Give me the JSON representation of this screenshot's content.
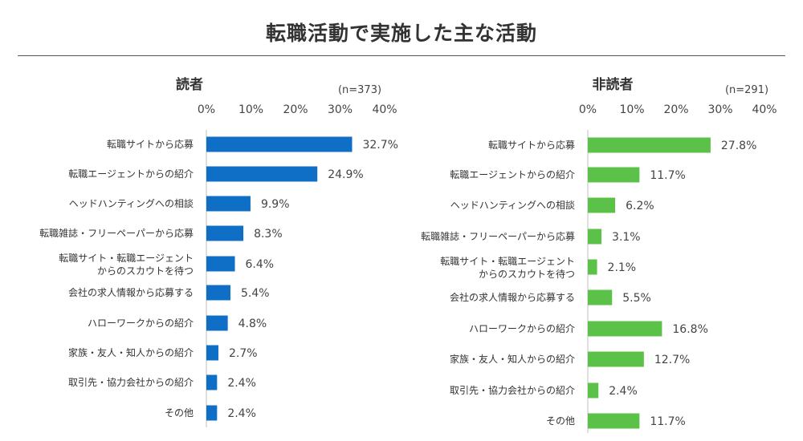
{
  "title": "転職活動で実施した主な活動",
  "chart_data": [
    {
      "type": "bar",
      "orientation": "horizontal",
      "title": "読者",
      "n_label": "(n=373)",
      "x_ticks": [
        "0%",
        "10%",
        "20%",
        "30%",
        "40%"
      ],
      "xlim": [
        0,
        40
      ],
      "unit": "%",
      "color": "#0f6fc6",
      "categories": [
        [
          "転職サイトから応募"
        ],
        [
          "転職エージェントからの紹介"
        ],
        [
          "ヘッドハンティングへの相談"
        ],
        [
          "転職雑誌・フリーペーパーから応募"
        ],
        [
          "転職サイト・転職エージェント",
          "からのスカウトを待つ"
        ],
        [
          "会社の求人情報から応募する"
        ],
        [
          "ハローワークからの紹介"
        ],
        [
          "家族・友人・知人からの紹介"
        ],
        [
          "取引先・協力会社からの紹介"
        ],
        [
          "その他"
        ]
      ],
      "values": [
        32.7,
        24.9,
        9.9,
        8.3,
        6.4,
        5.4,
        4.8,
        2.7,
        2.4,
        2.4
      ],
      "value_labels": [
        "32.7%",
        "24.9%",
        "9.9%",
        "8.3%",
        "6.4%",
        "5.4%",
        "4.8%",
        "2.7%",
        "2.4%",
        "2.4%"
      ]
    },
    {
      "type": "bar",
      "orientation": "horizontal",
      "title": "非読者",
      "n_label": "(n=291)",
      "x_ticks": [
        "0%",
        "10%",
        "20%",
        "30%",
        "40%"
      ],
      "xlim": [
        0,
        40
      ],
      "unit": "%",
      "color": "#5cc148",
      "categories": [
        [
          "転職サイトから応募"
        ],
        [
          "転職エージェントからの紹介"
        ],
        [
          "ヘッドハンティングへの相談"
        ],
        [
          "転職雑誌・フリーペーパーから応募"
        ],
        [
          "転職サイト・転職エージェント",
          "からのスカウトを待つ"
        ],
        [
          "会社の求人情報から応募する"
        ],
        [
          "ハローワークからの紹介"
        ],
        [
          "家族・友人・知人からの紹介"
        ],
        [
          "取引先・協力会社からの紹介"
        ],
        [
          "その他"
        ]
      ],
      "values": [
        27.8,
        11.7,
        6.2,
        3.1,
        2.1,
        5.5,
        16.8,
        12.7,
        2.4,
        11.7
      ],
      "value_labels": [
        "27.8%",
        "11.7%",
        "6.2%",
        "3.1%",
        "2.1%",
        "5.5%",
        "16.8%",
        "12.7%",
        "2.4%",
        "11.7%"
      ]
    }
  ]
}
